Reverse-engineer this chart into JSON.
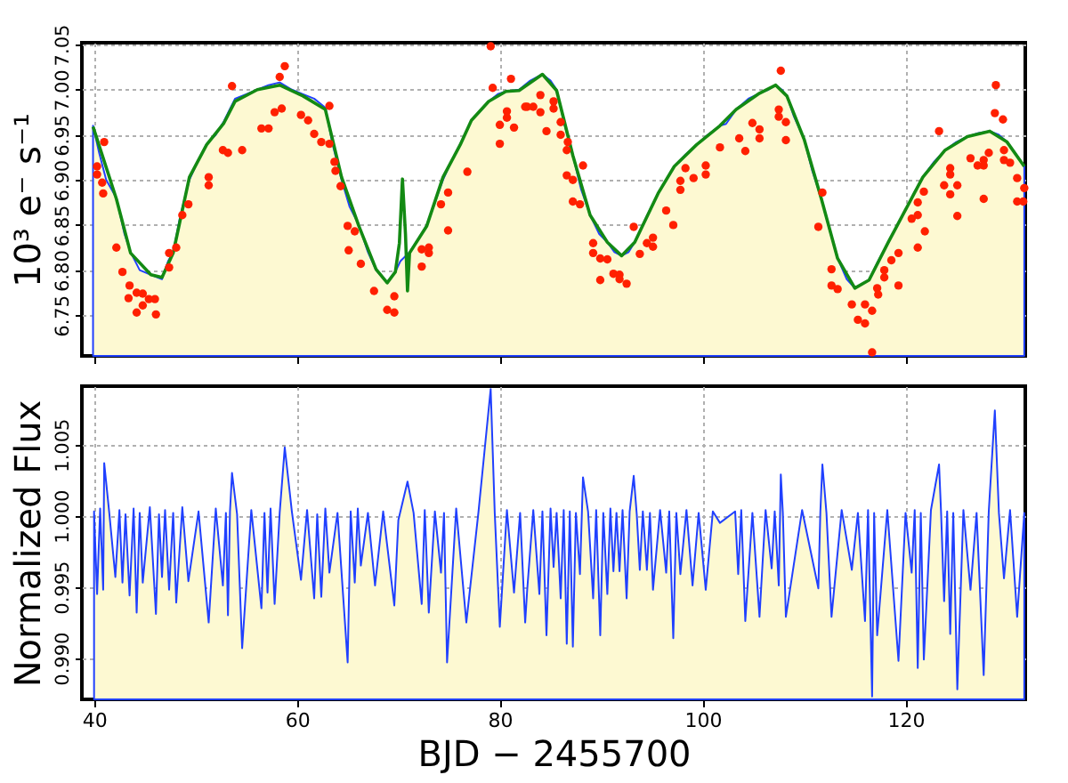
{
  "chart_data": [
    {
      "type": "line",
      "ylabel": "10³ e⁻ s⁻¹",
      "xlim": [
        38.8,
        131.8
      ],
      "ylim": [
        6.705,
        7.052
      ],
      "xticks": [
        40,
        60,
        80,
        100,
        120
      ],
      "yticks": [
        6.75,
        {
          "value": 6.8,
          "label": "6.80"
        },
        6.85,
        {
          "value": 6.9,
          "label": "6.90"
        },
        6.95,
        {
          "value": 7,
          "label": "7.00"
        },
        7.05
      ],
      "grid": true,
      "tick_labels": "y",
      "series": [
        {
          "type": "area",
          "color": "#2040ff",
          "x": [
            39.9,
            40.5,
            41.2,
            42.2,
            43.0,
            43.6,
            44.5,
            45.6,
            46.7,
            47.3,
            47.8,
            48.5,
            49.4,
            50.2,
            51.1,
            52.0,
            52.8,
            53.9,
            55.0,
            56.1,
            57.2,
            58.3,
            59.5,
            60.6,
            61.7,
            62.8,
            63.5,
            64.4,
            65.2,
            66.1,
            67.0,
            67.8,
            68.9,
            69.7,
            70.2,
            71.1,
            72.0,
            72.8,
            73.6,
            74.4,
            75.2,
            76.1,
            77.2,
            78.0,
            78.9,
            79.8,
            80.6,
            81.9,
            83.0,
            84.2,
            85.0,
            85.6,
            86.4,
            87.2,
            88.0,
            88.9,
            89.8,
            90.6,
            91.3,
            92.0,
            92.7,
            93.3,
            94.5,
            95.6,
            96.4,
            97.2,
            98.3,
            99.4,
            100.5,
            101.7,
            102.3,
            103.3,
            104.5,
            105.6,
            106.5,
            107.2,
            107.8,
            108.3,
            109.0,
            110.0,
            110.8,
            111.7,
            112.5,
            113.3,
            114.2,
            115.0,
            115.7,
            116.4,
            117.3,
            118.3,
            119.2,
            120.0,
            120.8,
            121.7,
            122.8,
            123.9,
            125.0,
            126.1,
            127.2,
            128.3,
            129.2,
            130.0,
            130.8,
            131.7
          ],
          "values": [
            6.96,
            6.93,
            6.9,
            6.88,
            6.84,
            6.82,
            6.8,
            6.795,
            6.79,
            6.81,
            6.82,
            6.86,
            6.9,
            6.92,
            6.94,
            6.95,
            6.965,
            6.99,
            6.995,
            7.0,
            7.005,
            7.008,
            7.0,
            6.995,
            6.99,
            6.98,
            6.94,
            6.9,
            6.87,
            6.85,
            6.82,
            6.8,
            6.786,
            6.798,
            6.81,
            6.82,
            6.835,
            6.85,
            6.875,
            6.9,
            6.92,
            6.94,
            6.966,
            6.975,
            6.987,
            6.995,
            6.998,
            7.0,
            7.01,
            7.017,
            7.01,
            7.0,
            6.96,
            6.927,
            6.89,
            6.861,
            6.84,
            6.831,
            6.82,
            6.816,
            6.82,
            6.831,
            6.86,
            6.885,
            6.9,
            6.915,
            6.928,
            6.939,
            6.95,
            6.96,
            6.962,
            6.978,
            6.99,
            6.996,
            7.0,
            7.005,
            7.0,
            6.993,
            6.97,
            6.945,
            6.91,
            6.879,
            6.845,
            6.813,
            6.79,
            6.78,
            6.785,
            6.789,
            6.81,
            6.831,
            6.85,
            6.867,
            6.885,
            6.903,
            6.92,
            6.933,
            6.942,
            6.948,
            6.952,
            6.954,
            6.95,
            6.942,
            6.93,
            6.915
          ]
        },
        {
          "type": "line",
          "color": "#138a13",
          "x": [
            39.9,
            42.2,
            43.6,
            45.6,
            46.7,
            47.8,
            49.4,
            51.1,
            52.8,
            53.9,
            56.1,
            58.3,
            60.6,
            62.8,
            64.4,
            66.1,
            67.8,
            68.9,
            69.7,
            70.1,
            70.4,
            70.7,
            70.9,
            71.1,
            72.8,
            74.4,
            76.1,
            77.2,
            78.9,
            80.6,
            81.9,
            84.2,
            85.6,
            87.2,
            88.9,
            90.6,
            92.0,
            93.3,
            95.6,
            97.2,
            99.4,
            101.7,
            103.3,
            105.6,
            107.2,
            108.3,
            110.0,
            111.7,
            113.3,
            115.0,
            116.4,
            118.3,
            120.0,
            121.7,
            123.9,
            126.1,
            128.3,
            130.0,
            131.7
          ],
          "values": [
            6.959,
            6.879,
            6.819,
            6.795,
            6.792,
            6.819,
            6.903,
            6.939,
            6.963,
            6.987,
            7.0,
            7.005,
            6.993,
            6.978,
            6.903,
            6.849,
            6.801,
            6.786,
            6.798,
            6.83,
            6.901,
            6.84,
            6.777,
            6.819,
            6.849,
            6.903,
            6.939,
            6.966,
            6.987,
            6.998,
            6.999,
            7.017,
            6.999,
            6.927,
            6.861,
            6.831,
            6.816,
            6.831,
            6.885,
            6.915,
            6.939,
            6.96,
            6.978,
            6.996,
            7.005,
            6.993,
            6.945,
            6.879,
            6.813,
            6.78,
            6.789,
            6.831,
            6.867,
            6.903,
            6.933,
            6.948,
            6.954,
            6.942,
            6.915
          ]
        },
        {
          "type": "scatter",
          "marker": "circle",
          "color": "#ff2000",
          "x": [
            40.3,
            40.3,
            41.0,
            40.8,
            40.9,
            42.2,
            42.8,
            43.5,
            43.4,
            44.2,
            44.2,
            44.8,
            44.8,
            45.4,
            46.0,
            46.1,
            47.4,
            47.4,
            48.1,
            48.7,
            49.3,
            51.3,
            51.3,
            52.7,
            53.2,
            54.6,
            53.6,
            56.5,
            57.2,
            57.8,
            58.5,
            58.3,
            58.8,
            60.4,
            61.1,
            61.7,
            62.4,
            63.2,
            63.2,
            63.7,
            63.8,
            64.3,
            65.0,
            65.1,
            65.7,
            66.3,
            67.6,
            68.9,
            69.6,
            69.6,
            72.3,
            72.3,
            73.0,
            73.0,
            74.2,
            74.9,
            74.9,
            76.8,
            79.1,
            79.3,
            80.0,
            80.0,
            80.7,
            80.7,
            81.4,
            81.1,
            82.7,
            83.3,
            84.0,
            84.6,
            82.5,
            84.0,
            85.3,
            85.3,
            86.0,
            86.0,
            86.7,
            86.6,
            86.6,
            87.2,
            87.2,
            87.9,
            88.2,
            89.2,
            89.2,
            89.9,
            90.6,
            89.9,
            91.2,
            91.8,
            91.8,
            92.5,
            93.2,
            93.8,
            94.5,
            95.1,
            95.1,
            96.4,
            97.1,
            97.8,
            97.8,
            98.3,
            99.1,
            100.3,
            100.3,
            101.7,
            103.6,
            104.2,
            104.9,
            105.6,
            105.6,
            107.5,
            107.5,
            107.7,
            108.2,
            108.2,
            111.8,
            111.4,
            112.7,
            112.7,
            113.3,
            114.7,
            115.3,
            116.0,
            116.0,
            116.7,
            116.7,
            117.2,
            117.3,
            117.9,
            117.9,
            118.6,
            119.3,
            119.3,
            120.6,
            121.2,
            121.2,
            121.2,
            121.8,
            121.9,
            123.3,
            123.8,
            124.4,
            124.4,
            124.4,
            125.1,
            125.1,
            126.4,
            127.1,
            127.7,
            127.7,
            127.7,
            128.2,
            128.8,
            128.9,
            129.6,
            129.7,
            129.7,
            130.3,
            131.0,
            131.0,
            131.6,
            131.7
          ],
          "values": [
            6.915,
            6.906,
            6.942,
            6.897,
            6.885,
            6.825,
            6.798,
            6.783,
            6.769,
            6.775,
            6.753,
            6.774,
            6.761,
            6.768,
            6.768,
            6.751,
            6.819,
            6.803,
            6.825,
            6.861,
            6.873,
            6.903,
            6.894,
            6.933,
            6.93,
            6.933,
            7.004,
            6.957,
            6.957,
            6.975,
            6.979,
            7.014,
            7.026,
            6.972,
            6.966,
            6.951,
            6.942,
            6.94,
            6.982,
            6.92,
            6.91,
            6.893,
            6.849,
            6.822,
            6.843,
            6.807,
            6.777,
            6.756,
            6.771,
            6.753,
            6.823,
            6.804,
            6.825,
            6.819,
            6.873,
            6.886,
            6.844,
            6.909,
            7.048,
            7.002,
            6.94,
            6.961,
            6.976,
            6.969,
            6.958,
            7.012,
            6.981,
            6.981,
            6.975,
            6.954,
            6.981,
            6.994,
            6.987,
            6.979,
            6.964,
            6.95,
            6.942,
            6.933,
            6.905,
            6.9,
            6.876,
            6.873,
            6.916,
            6.83,
            6.819,
            6.813,
            6.812,
            6.789,
            6.796,
            6.795,
            6.79,
            6.785,
            6.848,
            6.818,
            6.83,
            6.836,
            6.826,
            6.866,
            6.85,
            6.899,
            6.889,
            6.913,
            6.902,
            6.916,
            6.906,
            6.936,
            6.946,
            6.932,
            6.963,
            6.956,
            6.946,
            6.978,
            6.97,
            7.021,
            6.964,
            6.944,
            6.886,
            6.848,
            6.801,
            6.783,
            6.779,
            6.762,
            6.745,
            6.762,
            6.741,
            6.755,
            6.709,
            6.78,
            6.773,
            6.8,
            6.792,
            6.811,
            6.819,
            6.783,
            6.857,
            6.875,
            6.861,
            6.825,
            6.887,
            6.843,
            6.954,
            6.894,
            6.913,
            6.906,
            6.884,
            6.894,
            6.86,
            6.924,
            6.916,
            6.922,
            6.916,
            6.879,
            6.93,
            6.974,
            7.005,
            6.967,
            6.933,
            6.922,
            6.919,
            6.902,
            6.876,
            6.876,
            6.891
          ]
        }
      ]
    },
    {
      "type": "area",
      "xlabel": "BJD − 2455700",
      "ylabel": "Normalized Flux",
      "xlim": [
        38.8,
        131.8
      ],
      "ylim": [
        0.9871,
        1.0091
      ],
      "xticks": [
        40,
        60,
        80,
        100,
        120
      ],
      "yticks": [
        {
          "value": 0.99,
          "label": "0.990"
        },
        0.995,
        {
          "value": 1,
          "label": "1.000"
        },
        1.005
      ],
      "grid": true,
      "series": [
        {
          "color": "#2040ff",
          "x": [
            40.0,
            40.3,
            40.6,
            40.9,
            41.0,
            41.5,
            42.1,
            42.5,
            42.8,
            43.1,
            43.5,
            43.9,
            44.2,
            44.5,
            44.8,
            45.5,
            46.1,
            46.4,
            46.7,
            47.0,
            47.4,
            47.8,
            48.1,
            48.7,
            49.3,
            50.3,
            51.3,
            52.0,
            52.7,
            53.0,
            53.2,
            53.4,
            53.6,
            54.1,
            54.6,
            55.5,
            56.5,
            56.8,
            57.1,
            57.4,
            57.8,
            58.3,
            58.8,
            59.5,
            60.4,
            61.0,
            61.7,
            62.0,
            62.4,
            62.8,
            63.2,
            64.0,
            65.0,
            65.3,
            65.7,
            66.0,
            66.3,
            67.0,
            67.7,
            68.5,
            69.6,
            70.0,
            70.9,
            71.5,
            72.3,
            72.6,
            73.0,
            73.6,
            74.2,
            74.5,
            74.8,
            75.7,
            76.7,
            77.9,
            79.1,
            79.5,
            80.0,
            80.7,
            81.4,
            82.0,
            82.5,
            82.7,
            83.3,
            83.9,
            84.2,
            84.6,
            85.0,
            85.3,
            85.6,
            86.0,
            86.3,
            86.6,
            86.9,
            87.2,
            87.5,
            87.9,
            88.2,
            88.7,
            89.2,
            89.5,
            89.9,
            90.2,
            90.6,
            90.9,
            91.2,
            91.5,
            91.8,
            92.1,
            92.5,
            92.8,
            93.2,
            93.5,
            93.8,
            94.1,
            94.5,
            94.8,
            95.1,
            95.8,
            96.4,
            96.7,
            97.1,
            97.4,
            97.8,
            98.4,
            99.0,
            99.6,
            100.3,
            101.0,
            101.7,
            103.2,
            103.5,
            103.8,
            104.2,
            104.9,
            105.6,
            106.2,
            106.8,
            107.1,
            107.5,
            107.7,
            107.9,
            108.2,
            109.8,
            111.4,
            111.6,
            111.8,
            112.2,
            112.7,
            113.7,
            114.7,
            115.3,
            116.0,
            116.3,
            116.7,
            116.9,
            117.2,
            118.2,
            119.3,
            120.0,
            120.6,
            120.9,
            121.2,
            121.5,
            121.8,
            122.5,
            123.3,
            123.5,
            123.8,
            124.1,
            124.4,
            124.7,
            125.1,
            125.7,
            126.4,
            127.0,
            127.7,
            128.2,
            128.8,
            129.2,
            129.7,
            130.3,
            131.0,
            131.7
          ],
          "values": [
            1.0003,
            0.9945,
            1.0005,
            0.9948,
            1.0037,
            1.0002,
            0.9957,
            1.0004,
            0.9953,
            1.0001,
            0.9944,
            1.0005,
            0.9932,
            1.0002,
            0.9953,
            1.0006,
            0.9931,
            1.0001,
            0.9957,
            1.0004,
            0.9948,
            1.0002,
            0.9939,
            1.0006,
            0.9954,
            1.0003,
            0.9925,
            1.0005,
            0.9951,
            1.0002,
            0.993,
            1.0003,
            1.003,
            1.0001,
            0.9907,
            1.0004,
            0.9935,
            1.0002,
            0.9946,
            1.0005,
            0.9938,
            1.0002,
            1.0048,
            1.0003,
            0.9955,
            1.0004,
            0.9942,
            1.0001,
            0.9943,
            1.0005,
            0.996,
            1.0002,
            0.9897,
            1.0003,
            0.9953,
            1.0005,
            0.9965,
            1.0002,
            0.9951,
            1.0003,
            0.9937,
            0.9997,
            1.0024,
            1.0002,
            0.9938,
            1.0004,
            0.9932,
            1.0003,
            0.996,
            1.0002,
            0.9897,
            1.0005,
            0.9925,
            1.0003,
            1.0089,
            1.0002,
            0.9922,
            1.0004,
            0.9946,
            1.0002,
            0.9925,
            0.9948,
            1.0004,
            0.9945,
            1.0003,
            0.9916,
            1.0005,
            0.9964,
            1.0002,
            0.9942,
            1.0004,
            0.991,
            1.0003,
            0.9908,
            1.0002,
            0.9959,
            1.0027,
            1.0003,
            0.9942,
            1.0004,
            0.9916,
            1.0002,
            0.9945,
            1.0005,
            0.9961,
            1.0002,
            0.9961,
            1.0004,
            0.9942,
            1.0003,
            1.0028,
            1.0001,
            0.9962,
            1.0003,
            0.9962,
            1.0002,
            0.9948,
            1.0004,
            0.996,
            1.0003,
            0.9914,
            1.0002,
            0.9959,
            1.0004,
            0.9951,
            1.0002,
            0.9948,
            1.0003,
            0.9995,
            1.0003,
            0.9959,
            1.0004,
            0.9926,
            1.0002,
            0.9929,
            1.0004,
            0.9963,
            1.0003,
            0.9951,
            1.0029,
            1.0002,
            0.9929,
            1.0004,
            0.9949,
            1.0003,
            1.0036,
            1.0002,
            0.9929,
            1.0004,
            0.9962,
            1.0002,
            0.9926,
            1.0004,
            0.9873,
            1.0002,
            0.9916,
            1.0004,
            0.9898,
            1.0002,
            0.996,
            1.0004,
            0.9893,
            1.0002,
            0.9899,
            1.0004,
            1.0036,
            1.0002,
            0.994,
            1.0003,
            0.9917,
            1.0002,
            0.9878,
            1.0004,
            0.9948,
            1.0002,
            0.9888,
            1.0003,
            1.0074,
            1.0002,
            0.9956,
            1.0004,
            0.9929,
            1.0002
          ]
        }
      ]
    }
  ]
}
